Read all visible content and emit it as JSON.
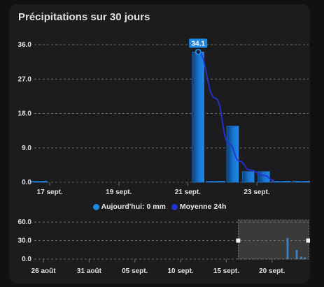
{
  "card": {
    "title": "Précipitations sur 30 jours"
  },
  "legend": {
    "today_label": "Aujourd'hui: 0 mm",
    "avg_label": "Moyenne 24h",
    "today_color": "#1e88e5",
    "avg_color": "#2333d6"
  },
  "chart_data": [
    {
      "type": "bar",
      "title": "",
      "xlabel": "",
      "ylabel": "",
      "ylim": [
        0,
        36
      ],
      "yticks": [
        "36.0",
        "27.0",
        "18.0",
        "9.0",
        "0.0"
      ],
      "xtick_labels": [
        "17 sept.",
        "19 sept.",
        "21 sept.",
        "23 sept."
      ],
      "x_domain_days": [
        16.55,
        24.5
      ],
      "bars": [
        {
          "day": 16.6,
          "value": 0.3
        },
        {
          "day": 16.75,
          "value": 0.3
        },
        {
          "day": 21.3,
          "value": 34.1
        },
        {
          "day": 21.7,
          "value": 0.3
        },
        {
          "day": 21.9,
          "value": 0.3
        },
        {
          "day": 22.3,
          "value": 14.7
        },
        {
          "day": 22.75,
          "value": 2.8
        },
        {
          "day": 23.2,
          "value": 2.8
        },
        {
          "day": 23.6,
          "value": 0.3
        },
        {
          "day": 23.8,
          "value": 0.3
        },
        {
          "day": 24.2,
          "value": 0.3
        },
        {
          "day": 24.4,
          "value": 0.3
        }
      ],
      "avg_line": [
        {
          "day": 21.3,
          "value": 34.1
        },
        {
          "day": 21.8,
          "value": 22
        },
        {
          "day": 22.2,
          "value": 10
        },
        {
          "day": 22.5,
          "value": 5.5
        },
        {
          "day": 22.8,
          "value": 3.2
        },
        {
          "day": 23.2,
          "value": 1.8
        },
        {
          "day": 23.5,
          "value": 0.5
        }
      ],
      "max_label": "34.1",
      "max_point": {
        "day": 21.3,
        "value": 34.1
      },
      "grid": true
    },
    {
      "type": "bar",
      "title": "",
      "ylim": [
        0,
        60
      ],
      "yticks": [
        "60.0",
        "30.0",
        "0.0"
      ],
      "xtick_labels": [
        "26 août",
        "31 août",
        "05 sept.",
        "10 sept.",
        "15 sept.",
        "20 sept."
      ],
      "x_domain_days": [
        0,
        30
      ],
      "x_tick_days": [
        1,
        6,
        11,
        16,
        21,
        26
      ],
      "bars": [
        {
          "day": 27.7,
          "value": 34.1
        },
        {
          "day": 28.7,
          "value": 14.7
        },
        {
          "day": 29.2,
          "value": 4
        },
        {
          "day": 29.6,
          "value": 2.8
        }
      ],
      "selection_days": [
        22.3,
        30
      ],
      "grid": true
    }
  ]
}
